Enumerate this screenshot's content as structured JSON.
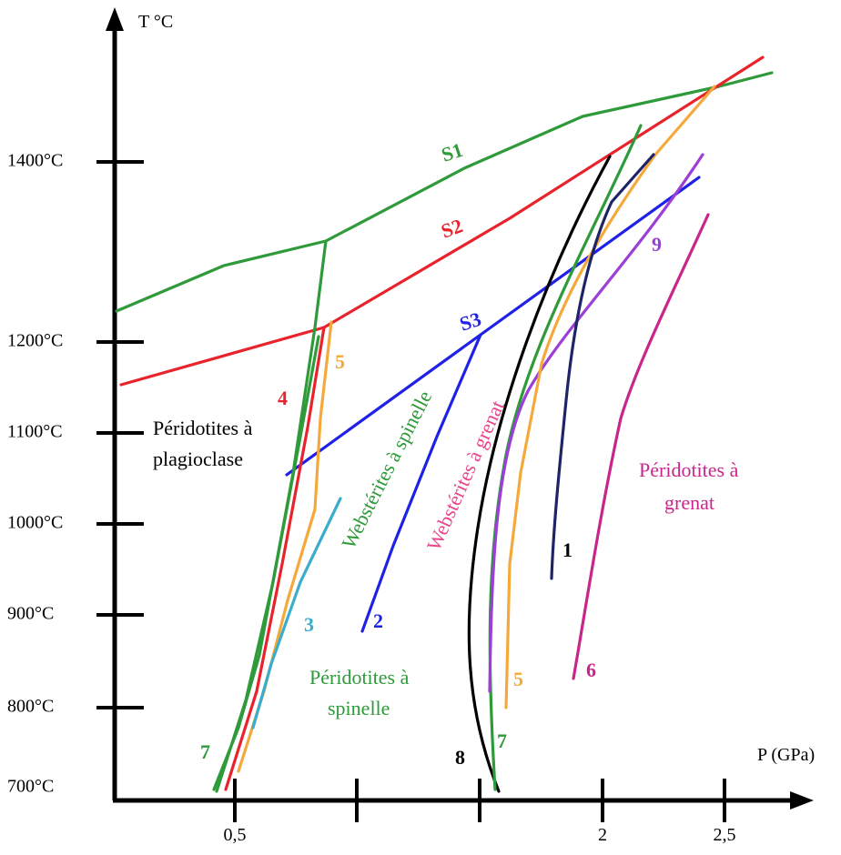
{
  "axes": {
    "y_label": "T °C",
    "x_label": "P (GPa)",
    "y_ticks": [
      "1400°C",
      "1200°C",
      "1100°C",
      "1000°C",
      "900°C",
      "800°C",
      "700°C"
    ],
    "x_ticks": [
      "0,5",
      "2",
      "2,5"
    ]
  },
  "regions": {
    "plagioclase_line1": "Péridotites à",
    "plagioclase_line2": "plagioclase",
    "spinelle_line1": "Péridotites à",
    "spinelle_line2": "spinelle",
    "grenat_line1": "Péridotites à",
    "grenat_line2": "grenat",
    "webst_spinelle": "Webstérites à spinelle",
    "webst_grenat": "Webstérites à grenat"
  },
  "curve_labels": {
    "s1": "S1",
    "s2": "S2",
    "s3": "S3",
    "c1": "1",
    "c2": "2",
    "c3": "3",
    "c4": "4",
    "c5_top": "5",
    "c5_bottom": "5",
    "c6": "6",
    "c7_left": "7",
    "c7_right": "7",
    "c8": "8",
    "c9": "9"
  },
  "colors": {
    "S1": "#2e9a3a",
    "S2": "#e8232c",
    "S3": "#1f22e6",
    "curve1": "#1f2466",
    "curve2": "#1f22e6",
    "curve3": "#3aaccc",
    "curve4": "#e8232c",
    "curve5": "#f4a93a",
    "curve6": "#c8268a",
    "curve7": "#2e9a3a",
    "curve8": "#000000",
    "curve9": "#9b3fd6",
    "webst_grenat_text": "#e8458c"
  }
}
